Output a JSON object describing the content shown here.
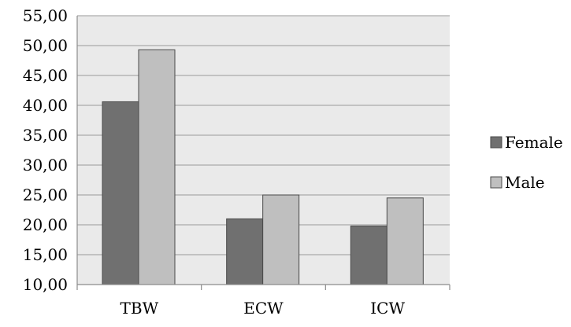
{
  "chart_data": {
    "type": "bar",
    "title": "",
    "xlabel": "",
    "ylabel": "",
    "categories": [
      "TBW",
      "ECW",
      "ICW"
    ],
    "series": [
      {
        "name": "Female",
        "values": [
          40.6,
          21.0,
          19.8
        ],
        "color": "#707070"
      },
      {
        "name": "Male",
        "values": [
          49.3,
          25.0,
          24.5
        ],
        "color": "#bfbfbf"
      }
    ],
    "ylim": [
      10,
      55
    ],
    "yticks": [
      10,
      15,
      20,
      25,
      30,
      35,
      40,
      45,
      50,
      55
    ],
    "ytick_labels": [
      "10,00",
      "15,00",
      "20,00",
      "25,00",
      "30,00",
      "35,00",
      "40,00",
      "45,00",
      "50,00",
      "55,00"
    ],
    "grid": true,
    "legend_position": "right",
    "plot_background": "#eaeaea",
    "grid_color": "#9a9a9a"
  }
}
